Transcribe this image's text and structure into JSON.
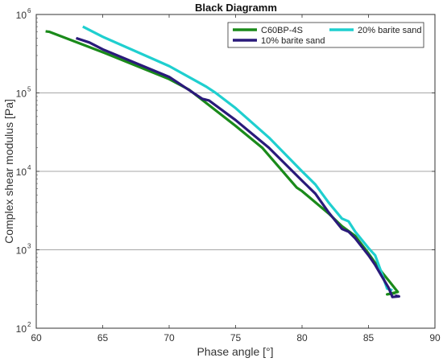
{
  "chart_data": {
    "type": "line",
    "title": "Black Diagramm",
    "xlabel": "Phase angle [°]",
    "ylabel": "Complex shear modulus [Pa]",
    "xlim": [
      60,
      90
    ],
    "ylim": [
      100,
      1000000
    ],
    "yscale": "log",
    "xticks": [
      {
        "value": 60,
        "label": "60"
      },
      {
        "value": 65,
        "label": "65"
      },
      {
        "value": 70,
        "label": "70"
      },
      {
        "value": 75,
        "label": "75"
      },
      {
        "value": 80,
        "label": "80"
      },
      {
        "value": 85,
        "label": "85"
      },
      {
        "value": 90,
        "label": "90"
      }
    ],
    "yticks": [
      {
        "value": 100,
        "base": "10",
        "exp": "2"
      },
      {
        "value": 1000,
        "base": "10",
        "exp": "3"
      },
      {
        "value": 10000,
        "base": "10",
        "exp": "4"
      },
      {
        "value": 100000,
        "base": "10",
        "exp": "5"
      },
      {
        "value": 1000000,
        "base": "10",
        "exp": "6"
      }
    ],
    "grid": "horizontal",
    "legend_position": "top-right",
    "series": [
      {
        "name": "C60BP-4S",
        "color": "#1a8a1a",
        "points": [
          [
            60.7,
            610000
          ],
          [
            61.0,
            600000
          ],
          [
            65.0,
            330000
          ],
          [
            70.0,
            150000
          ],
          [
            71.5,
            110000
          ],
          [
            75.0,
            38000
          ],
          [
            77.0,
            20000
          ],
          [
            79.6,
            6200
          ],
          [
            80.0,
            5600
          ],
          [
            82.0,
            2900
          ],
          [
            83.0,
            2000
          ],
          [
            84.0,
            1500
          ],
          [
            85.0,
            900
          ],
          [
            86.0,
            520
          ],
          [
            86.6,
            390
          ],
          [
            87.2,
            290
          ],
          [
            86.4,
            270
          ],
          [
            87.0,
            280
          ]
        ]
      },
      {
        "name": "20% barite sand",
        "color": "#1fcfcf",
        "points": [
          [
            63.5,
            700000
          ],
          [
            65.0,
            520000
          ],
          [
            70.0,
            220000
          ],
          [
            72.8,
            120000
          ],
          [
            73.5,
            100000
          ],
          [
            75.0,
            64000
          ],
          [
            77.5,
            27000
          ],
          [
            80.0,
            10000
          ],
          [
            81.0,
            6800
          ],
          [
            82.0,
            4000
          ],
          [
            83.0,
            2500
          ],
          [
            83.5,
            2300
          ],
          [
            84.0,
            1700
          ],
          [
            85.0,
            1050
          ],
          [
            85.5,
            850
          ],
          [
            86.0,
            500
          ],
          [
            86.4,
            320
          ],
          [
            86.8,
            305
          ]
        ]
      },
      {
        "name": "10% barite sand",
        "color": "#2a1a7a",
        "points": [
          [
            63.0,
            500000
          ],
          [
            64.0,
            440000
          ],
          [
            65.0,
            360000
          ],
          [
            70.0,
            160000
          ],
          [
            72.5,
            84000
          ],
          [
            73.0,
            80000
          ],
          [
            75.0,
            45000
          ],
          [
            77.5,
            20000
          ],
          [
            80.0,
            7600
          ],
          [
            81.0,
            5200
          ],
          [
            82.0,
            3000
          ],
          [
            83.0,
            1850
          ],
          [
            83.5,
            1700
          ],
          [
            84.0,
            1400
          ],
          [
            85.0,
            850
          ],
          [
            85.5,
            640
          ],
          [
            86.0,
            460
          ],
          [
            86.5,
            330
          ],
          [
            86.8,
            250
          ],
          [
            87.3,
            255
          ],
          [
            87.0,
            260
          ]
        ]
      }
    ]
  }
}
